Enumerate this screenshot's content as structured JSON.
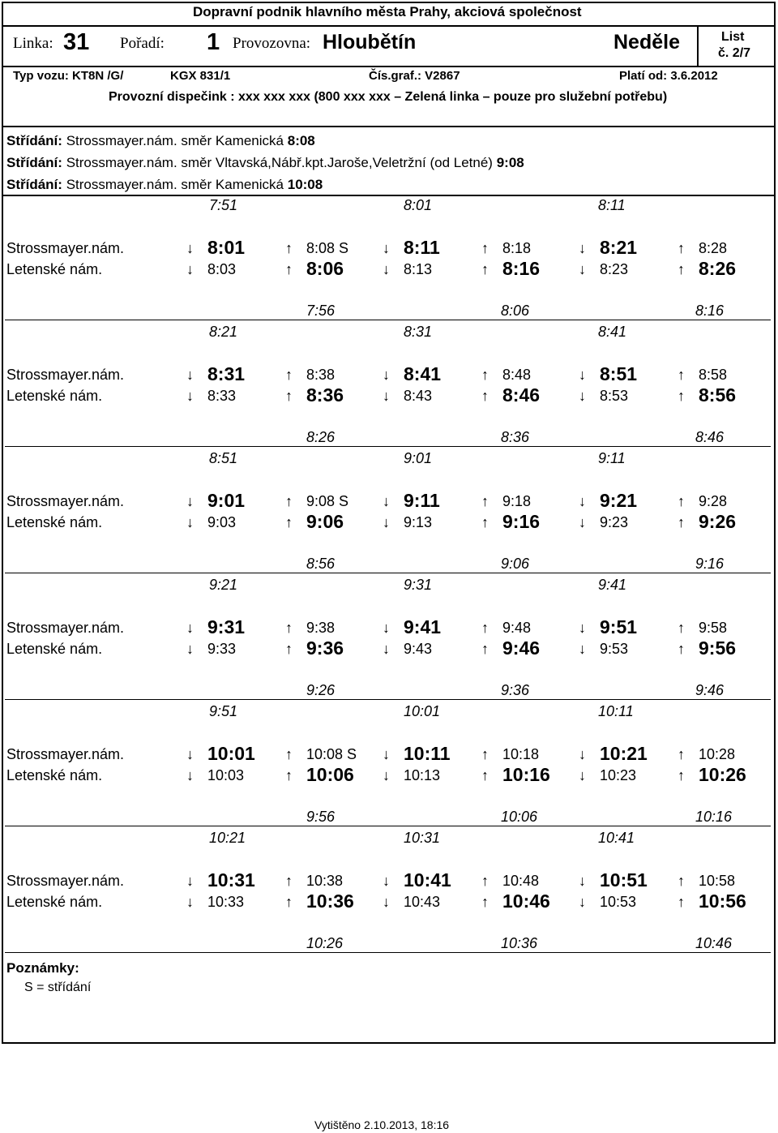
{
  "header": {
    "company": "Dopravní podnik hlavního města Prahy, akciová společnost",
    "linka_label": "Linka:",
    "linka_value": "31",
    "poradi_label": "Pořadí:",
    "poradi_value": "1",
    "provozovna_label": "Provozovna:",
    "provozovna_value": "Hloubětín",
    "day": "Neděle",
    "list_label": "List",
    "list_value": "č. 2/7",
    "typ_vozu": "Typ vozu: KT8N /G/",
    "kgx": "KGX 831/1",
    "cis_graf": "Čís.graf.: V2867",
    "plati_od": "Platí od: 3.6.2012",
    "dispecink": "Provozní dispečink : xxx xxx xxx (800 xxx xxx – Zelená linka – pouze pro služební potřebu)"
  },
  "stridani": [
    {
      "label": "Střídání:",
      "text": "Strossmayer.nám. směr Kamenická",
      "time": "8:08"
    },
    {
      "label": "Střídání:",
      "text": "Strossmayer.nám. směr Vltavská,Nábř.kpt.Jaroše,Veletržní (od Letné)",
      "time": "9:08"
    },
    {
      "label": "Střídání:",
      "text": "Strossmayer.nám. směr Kamenická",
      "time": "10:08"
    }
  ],
  "stops": {
    "a": "Strossmayer.nám.",
    "b": "Letenské nám."
  },
  "arrows": {
    "down": "↓",
    "up": "↑"
  },
  "blocks": [
    {
      "top_times": [
        "7:51",
        "8:01",
        "8:11"
      ],
      "row_a": [
        "8:01",
        "8:08 S",
        "8:11",
        "8:18",
        "8:21",
        "8:28"
      ],
      "row_b": [
        "8:03",
        "8:06",
        "8:13",
        "8:16",
        "8:23",
        "8:26"
      ],
      "bottom_times": [
        "7:56",
        "8:06",
        "8:16"
      ]
    },
    {
      "top_times": [
        "8:21",
        "8:31",
        "8:41"
      ],
      "row_a": [
        "8:31",
        "8:38",
        "8:41",
        "8:48",
        "8:51",
        "8:58"
      ],
      "row_b": [
        "8:33",
        "8:36",
        "8:43",
        "8:46",
        "8:53",
        "8:56"
      ],
      "bottom_times": [
        "8:26",
        "8:36",
        "8:46"
      ]
    },
    {
      "top_times": [
        "8:51",
        "9:01",
        "9:11"
      ],
      "row_a": [
        "9:01",
        "9:08 S",
        "9:11",
        "9:18",
        "9:21",
        "9:28"
      ],
      "row_b": [
        "9:03",
        "9:06",
        "9:13",
        "9:16",
        "9:23",
        "9:26"
      ],
      "bottom_times": [
        "8:56",
        "9:06",
        "9:16"
      ]
    },
    {
      "top_times": [
        "9:21",
        "9:31",
        "9:41"
      ],
      "row_a": [
        "9:31",
        "9:38",
        "9:41",
        "9:48",
        "9:51",
        "9:58"
      ],
      "row_b": [
        "9:33",
        "9:36",
        "9:43",
        "9:46",
        "9:53",
        "9:56"
      ],
      "bottom_times": [
        "9:26",
        "9:36",
        "9:46"
      ]
    },
    {
      "top_times": [
        "9:51",
        "10:01",
        "10:11"
      ],
      "row_a": [
        "10:01",
        "10:08 S",
        "10:11",
        "10:18",
        "10:21",
        "10:28"
      ],
      "row_b": [
        "10:03",
        "10:06",
        "10:13",
        "10:16",
        "10:23",
        "10:26"
      ],
      "bottom_times": [
        "9:56",
        "10:06",
        "10:16"
      ]
    },
    {
      "top_times": [
        "10:21",
        "10:31",
        "10:41"
      ],
      "row_a": [
        "10:31",
        "10:38",
        "10:41",
        "10:48",
        "10:51",
        "10:58"
      ],
      "row_b": [
        "10:33",
        "10:36",
        "10:43",
        "10:46",
        "10:53",
        "10:56"
      ],
      "bottom_times": [
        "10:26",
        "10:36",
        "10:46"
      ]
    }
  ],
  "notes": {
    "title": "Poznámky:",
    "item": "S = střídání"
  },
  "footer": "Vytištěno 2.10.2013, 18:16"
}
